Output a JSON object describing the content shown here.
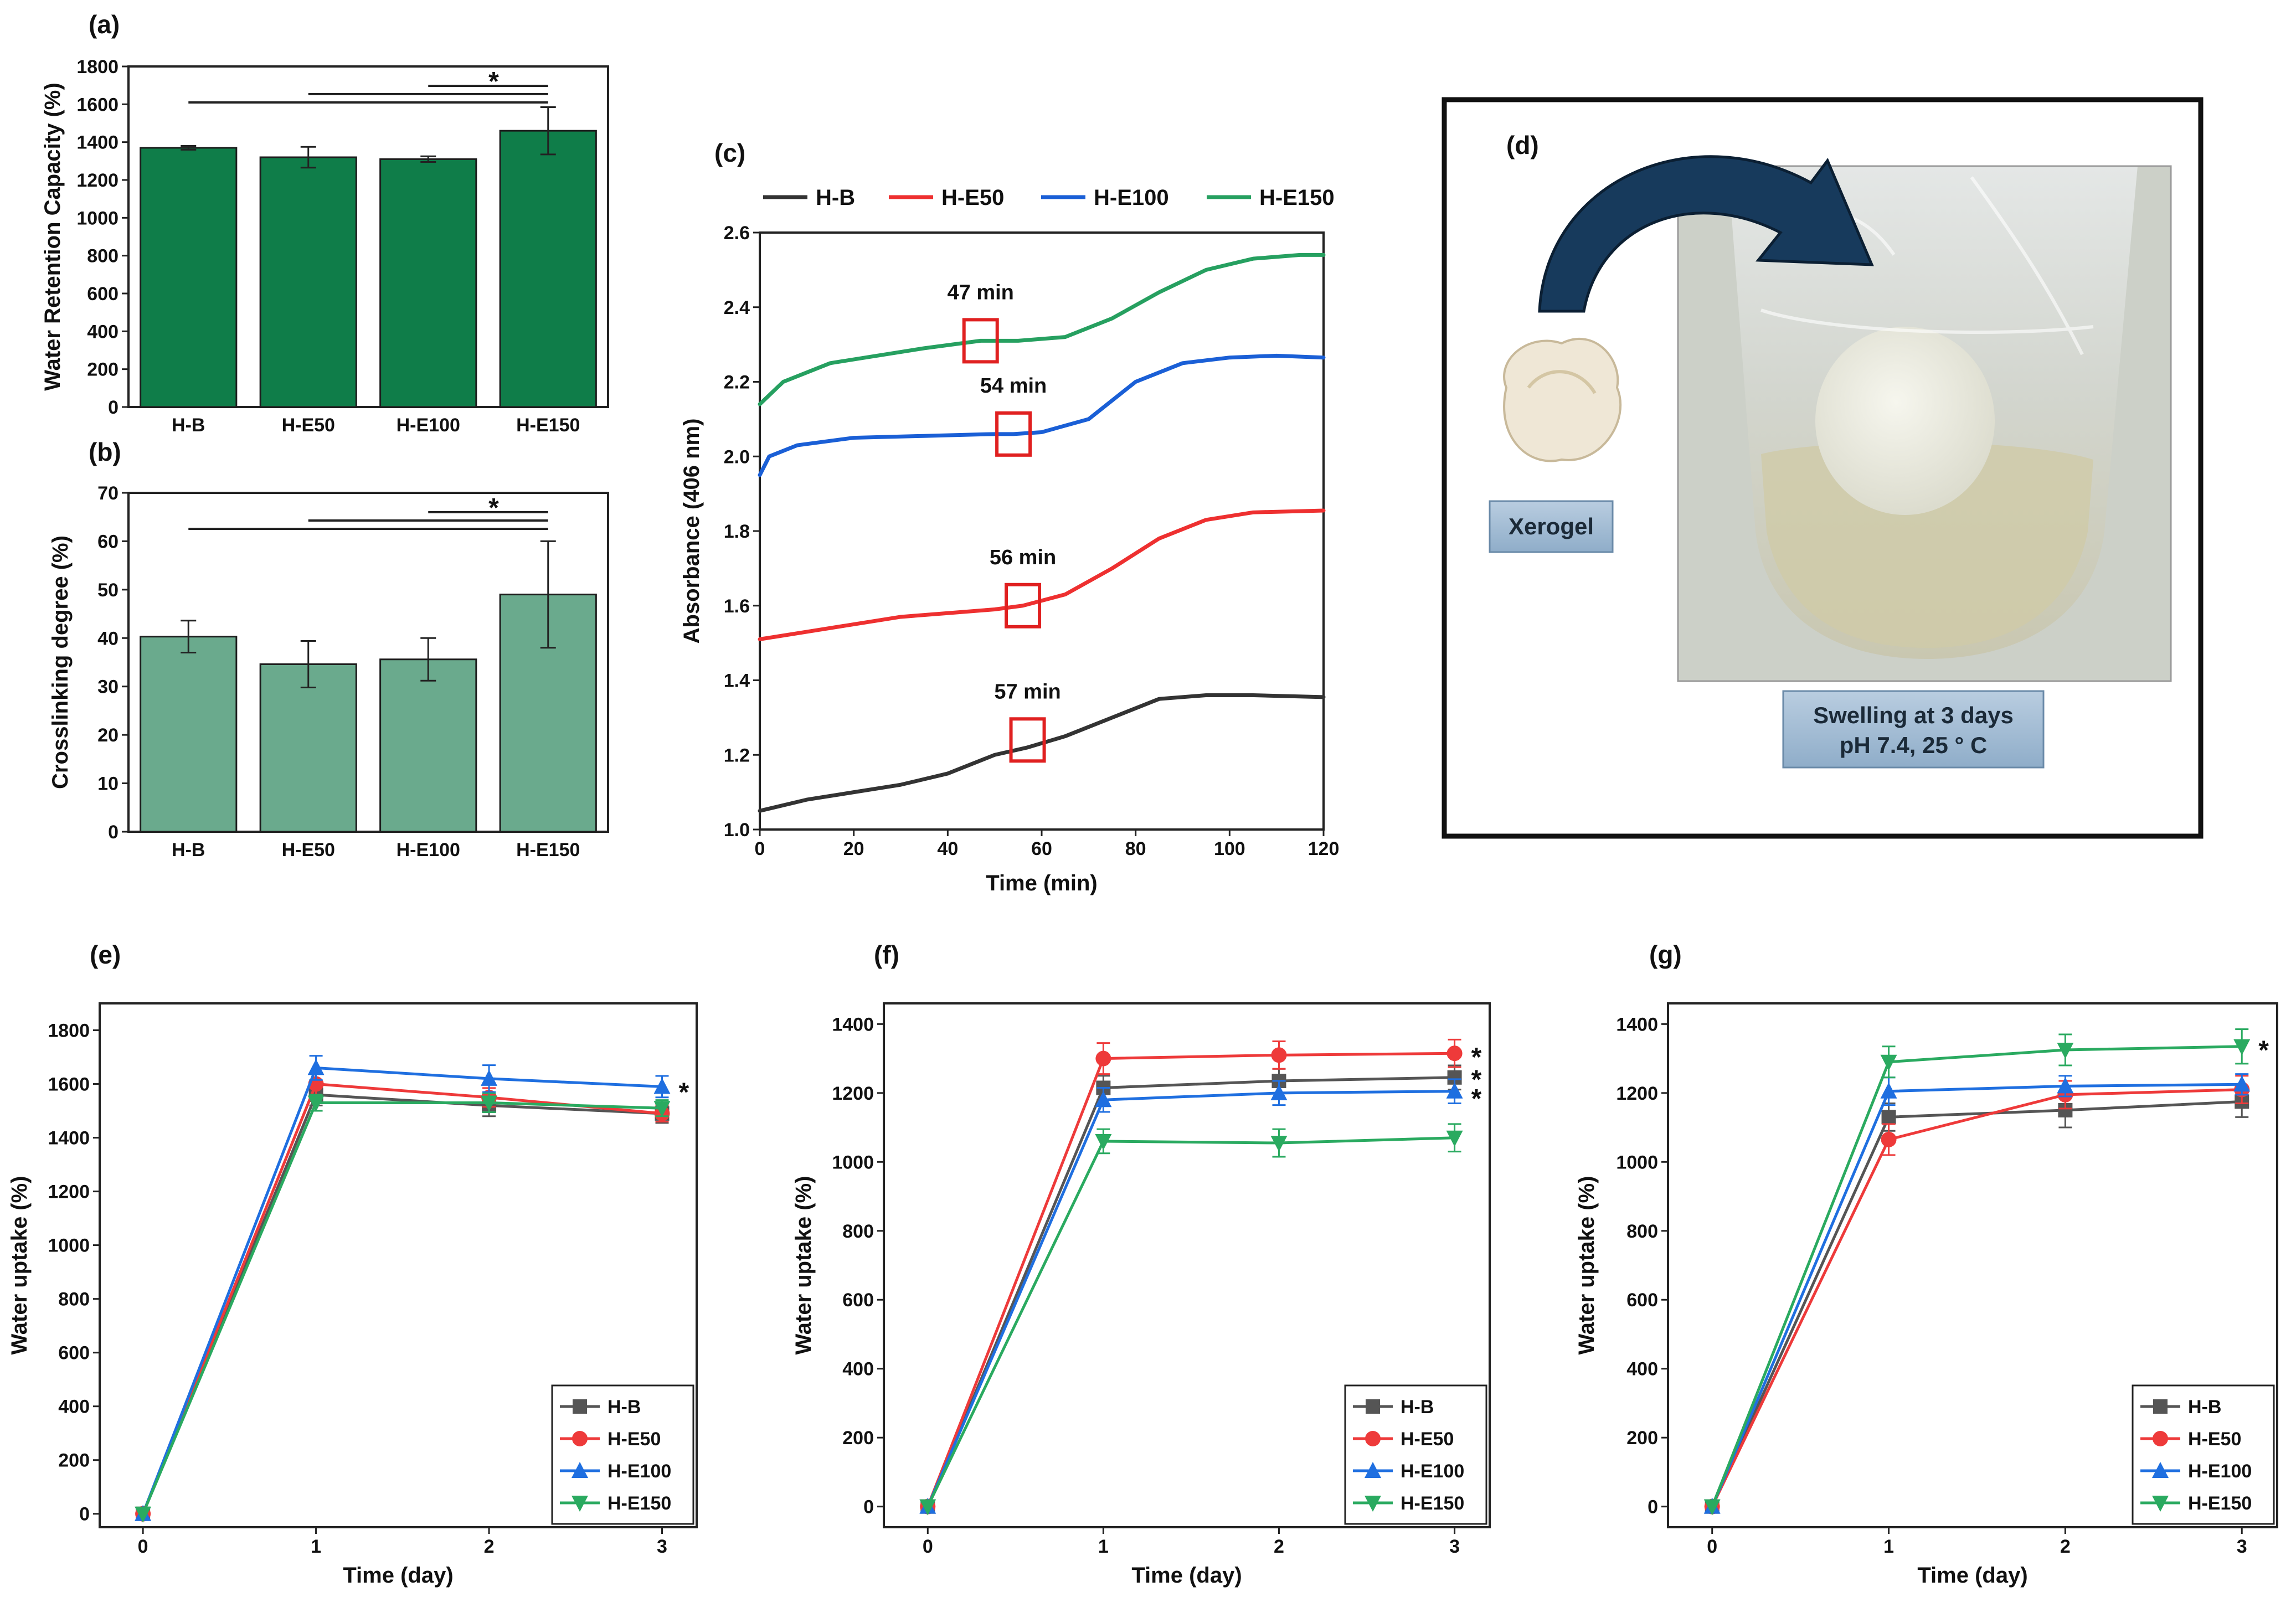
{
  "chart_data": [
    {
      "id": "a",
      "panel_label": "(a)",
      "type": "bar",
      "categories": [
        "H-B",
        "H-E50",
        "H-E100",
        "H-E150"
      ],
      "values": [
        1370,
        1320,
        1310,
        1460
      ],
      "errors": [
        10,
        55,
        15,
        125
      ],
      "ylabel": "Water Retention Capacity (%)",
      "ylim": [
        0,
        1800
      ],
      "yticks": [
        0,
        200,
        400,
        600,
        800,
        1000,
        1200,
        1400,
        1600,
        1800
      ],
      "bar_color": "#0f7d49",
      "significance": "*"
    },
    {
      "id": "b",
      "panel_label": "(b)",
      "type": "bar",
      "categories": [
        "H-B",
        "H-E50",
        "H-E100",
        "H-E150"
      ],
      "values": [
        40.3,
        34.6,
        35.6,
        49
      ],
      "errors": [
        3.3,
        4.8,
        4.4,
        11
      ],
      "ylabel": "Crosslinking degree (%)",
      "ylim": [
        0,
        70
      ],
      "yticks": [
        0,
        10,
        20,
        30,
        40,
        50,
        60,
        70
      ],
      "bar_color": "#6aaa8d",
      "significance": "*"
    },
    {
      "id": "c",
      "panel_label": "(c)",
      "type": "line",
      "xlabel": "Time (min)",
      "ylabel": "Absorbance (406 nm)",
      "xlim": [
        0,
        120
      ],
      "ylim": [
        1.0,
        2.6
      ],
      "xticks": [
        0,
        20,
        40,
        60,
        80,
        100,
        120
      ],
      "yticks": [
        1.0,
        1.2,
        1.4,
        1.6,
        1.8,
        2.0,
        2.2,
        2.4,
        2.6
      ],
      "series": [
        {
          "name": "H-B",
          "color": "#333333",
          "x": [
            0,
            10,
            20,
            30,
            40,
            50,
            57,
            65,
            75,
            85,
            95,
            105,
            120
          ],
          "y": [
            1.05,
            1.08,
            1.1,
            1.12,
            1.15,
            1.2,
            1.22,
            1.25,
            1.3,
            1.35,
            1.36,
            1.36,
            1.355
          ]
        },
        {
          "name": "H-E50",
          "color": "#ee3030",
          "x": [
            0,
            10,
            20,
            30,
            40,
            50,
            56,
            65,
            75,
            85,
            95,
            105,
            120
          ],
          "y": [
            1.51,
            1.53,
            1.55,
            1.57,
            1.58,
            1.59,
            1.6,
            1.63,
            1.7,
            1.78,
            1.83,
            1.85,
            1.855
          ]
        },
        {
          "name": "H-E100",
          "color": "#1a5fd6",
          "x": [
            0,
            2,
            8,
            20,
            35,
            50,
            54,
            60,
            70,
            80,
            90,
            100,
            110,
            120
          ],
          "y": [
            1.95,
            2.0,
            2.03,
            2.05,
            2.055,
            2.06,
            2.06,
            2.065,
            2.1,
            2.2,
            2.25,
            2.265,
            2.27,
            2.265
          ]
        },
        {
          "name": "H-E150",
          "color": "#26a060",
          "x": [
            0,
            5,
            15,
            25,
            35,
            47,
            55,
            65,
            75,
            85,
            95,
            105,
            115,
            120
          ],
          "y": [
            2.14,
            2.2,
            2.25,
            2.27,
            2.29,
            2.31,
            2.31,
            2.32,
            2.37,
            2.44,
            2.5,
            2.53,
            2.54,
            2.54
          ]
        }
      ],
      "annotations": [
        {
          "text": "47 min",
          "x": 47,
          "y": 2.31
        },
        {
          "text": "54 min",
          "x": 54,
          "y": 2.06
        },
        {
          "text": "56 min",
          "x": 56,
          "y": 1.6
        },
        {
          "text": "57 min",
          "x": 57,
          "y": 1.24
        }
      ],
      "legend": [
        "H-B",
        "H-E50",
        "H-E100",
        "H-E150"
      ],
      "legend_position": "top"
    },
    {
      "id": "e",
      "panel_label": "(e)",
      "type": "line",
      "xlabel": "Time (day)",
      "ylabel": "Water uptake (%)",
      "xlim": [
        -0.25,
        3.2
      ],
      "ylim": [
        -50,
        1900
      ],
      "xticks": [
        0,
        1,
        2,
        3
      ],
      "yticks": [
        0,
        200,
        400,
        600,
        800,
        1000,
        1200,
        1400,
        1600,
        1800
      ],
      "series": [
        {
          "name": "H-B",
          "color": "#555555",
          "marker": "square",
          "x": [
            0,
            1,
            2,
            3
          ],
          "y": [
            0,
            1560,
            1520,
            1490
          ],
          "err": [
            0,
            40,
            40,
            35
          ]
        },
        {
          "name": "H-E50",
          "color": "#ee3a3a",
          "marker": "circle",
          "x": [
            0,
            1,
            2,
            3
          ],
          "y": [
            0,
            1600,
            1550,
            1490
          ],
          "err": [
            0,
            40,
            35,
            30
          ]
        },
        {
          "name": "H-E100",
          "color": "#1f6fe0",
          "marker": "triangle-up",
          "x": [
            0,
            1,
            2,
            3
          ],
          "y": [
            0,
            1660,
            1620,
            1590
          ],
          "err": [
            0,
            45,
            50,
            40
          ]
        },
        {
          "name": "H-E150",
          "color": "#2aaa60",
          "marker": "triangle-down",
          "x": [
            0,
            1,
            2,
            3
          ],
          "y": [
            0,
            1530,
            1530,
            1510
          ],
          "err": [
            0,
            30,
            35,
            30
          ]
        }
      ],
      "stars": [
        1590
      ],
      "legend_position": "bottom-right"
    },
    {
      "id": "f",
      "panel_label": "(f)",
      "type": "line",
      "xlabel": "Time (day)",
      "ylabel": "Water uptake (%)",
      "xlim": [
        -0.25,
        3.2
      ],
      "ylim": [
        -60,
        1460
      ],
      "xticks": [
        0,
        1,
        2,
        3
      ],
      "yticks": [
        0,
        200,
        400,
        600,
        800,
        1000,
        1200,
        1400
      ],
      "series": [
        {
          "name": "H-B",
          "color": "#555555",
          "marker": "square",
          "x": [
            0,
            1,
            2,
            3
          ],
          "y": [
            0,
            1215,
            1235,
            1245
          ],
          "err": [
            0,
            35,
            35,
            35
          ]
        },
        {
          "name": "H-E50",
          "color": "#ee3a3a",
          "marker": "circle",
          "x": [
            0,
            1,
            2,
            3
          ],
          "y": [
            0,
            1300,
            1310,
            1315
          ],
          "err": [
            0,
            45,
            40,
            40
          ]
        },
        {
          "name": "H-E100",
          "color": "#1f6fe0",
          "marker": "triangle-up",
          "x": [
            0,
            1,
            2,
            3
          ],
          "y": [
            0,
            1180,
            1200,
            1205
          ],
          "err": [
            0,
            35,
            35,
            35
          ]
        },
        {
          "name": "H-E150",
          "color": "#2aaa60",
          "marker": "triangle-down",
          "x": [
            0,
            1,
            2,
            3
          ],
          "y": [
            0,
            1060,
            1055,
            1070
          ],
          "err": [
            0,
            35,
            40,
            40
          ]
        }
      ],
      "stars": [
        1320,
        1255,
        1200
      ],
      "legend_position": "bottom-right"
    },
    {
      "id": "g",
      "panel_label": "(g)",
      "type": "line",
      "xlabel": "Time (day)",
      "ylabel": "Water uptake (%)",
      "xlim": [
        -0.25,
        3.2
      ],
      "ylim": [
        -60,
        1460
      ],
      "xticks": [
        0,
        1,
        2,
        3
      ],
      "yticks": [
        0,
        200,
        400,
        600,
        800,
        1000,
        1200,
        1400
      ],
      "series": [
        {
          "name": "H-B",
          "color": "#555555",
          "marker": "square",
          "x": [
            0,
            1,
            2,
            3
          ],
          "y": [
            0,
            1130,
            1150,
            1175
          ],
          "err": [
            0,
            40,
            50,
            45
          ]
        },
        {
          "name": "H-E50",
          "color": "#ee3a3a",
          "marker": "circle",
          "x": [
            0,
            1,
            2,
            3
          ],
          "y": [
            0,
            1065,
            1195,
            1210
          ],
          "err": [
            0,
            45,
            40,
            40
          ]
        },
        {
          "name": "H-E100",
          "color": "#1f6fe0",
          "marker": "triangle-up",
          "x": [
            0,
            1,
            2,
            3
          ],
          "y": [
            0,
            1205,
            1220,
            1225
          ],
          "err": [
            0,
            40,
            30,
            30
          ]
        },
        {
          "name": "H-E150",
          "color": "#2aaa60",
          "marker": "triangle-down",
          "x": [
            0,
            1,
            2,
            3
          ],
          "y": [
            0,
            1290,
            1325,
            1335
          ],
          "err": [
            0,
            45,
            45,
            50
          ]
        }
      ],
      "stars": [
        1340
      ],
      "legend_position": "bottom-right"
    }
  ],
  "panel_d": {
    "label": "(d)",
    "xerogel_label": "Xerogel",
    "swelling_line1": "Swelling at 3 days",
    "swelling_line2": "pH 7.4, 25 ° C"
  }
}
